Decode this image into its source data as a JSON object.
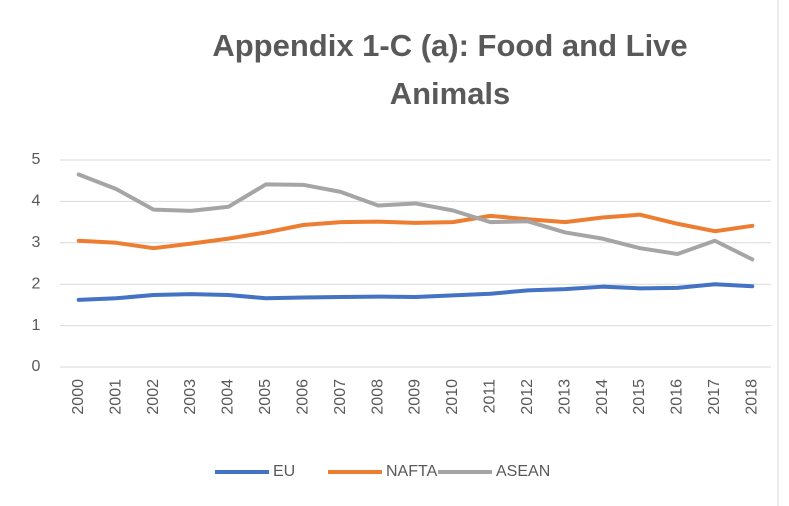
{
  "chart_data": {
    "type": "line",
    "title": "Appendix 1-C (a): Food and Live Animals",
    "categories": [
      "2000",
      "2001",
      "2002",
      "2003",
      "2004",
      "2005",
      "2006",
      "2007",
      "2008",
      "2009",
      "2010",
      "2011",
      "2012",
      "2013",
      "2014",
      "2015",
      "2016",
      "2017",
      "2018"
    ],
    "series": [
      {
        "name": "EU",
        "color": "#4472c4",
        "values": [
          1.62,
          1.66,
          1.74,
          1.76,
          1.74,
          1.66,
          1.68,
          1.69,
          1.7,
          1.69,
          1.73,
          1.77,
          1.85,
          1.88,
          1.94,
          1.9,
          1.91,
          2.0,
          1.95
        ]
      },
      {
        "name": "NAFTA",
        "color": "#ed7d31",
        "values": [
          3.05,
          3.0,
          2.87,
          2.98,
          3.1,
          3.25,
          3.43,
          3.5,
          3.51,
          3.48,
          3.5,
          3.65,
          3.57,
          3.5,
          3.61,
          3.68,
          3.46,
          3.28,
          3.41
        ]
      },
      {
        "name": "ASEAN",
        "color": "#a5a5a5",
        "values": [
          4.65,
          4.3,
          3.8,
          3.77,
          3.87,
          4.41,
          4.4,
          4.23,
          3.9,
          3.95,
          3.78,
          3.5,
          3.52,
          3.25,
          3.1,
          2.87,
          2.73,
          3.05,
          2.6
        ]
      }
    ],
    "ylim": [
      0,
      5
    ],
    "yticks": [
      0,
      1,
      2,
      3,
      4,
      5
    ],
    "grid": true,
    "legend": "bottom"
  }
}
